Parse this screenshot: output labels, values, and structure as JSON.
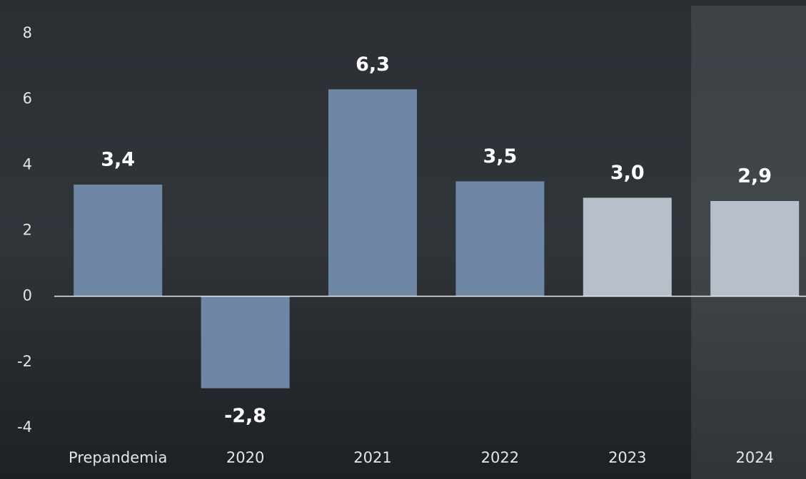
{
  "chart_data": {
    "type": "bar",
    "categories": [
      "Prepandemia",
      "2020",
      "2021",
      "2022",
      "2023",
      "2024"
    ],
    "values": [
      3.4,
      -2.8,
      6.3,
      3.5,
      3.0,
      2.9
    ],
    "value_labels": [
      "3,4",
      "-2,8",
      "6,3",
      "3,5",
      "3,0",
      "2,9"
    ],
    "colors": [
      "#6d87a4",
      "#6d87a4",
      "#6d87a4",
      "#6d87a4",
      "#b7c0ca",
      "#b7c0ca"
    ],
    "highlight": "2024",
    "ylim": [
      -4,
      8
    ],
    "yticks": [
      -4,
      -2,
      0,
      2,
      4,
      6,
      8
    ],
    "grid": false
  }
}
